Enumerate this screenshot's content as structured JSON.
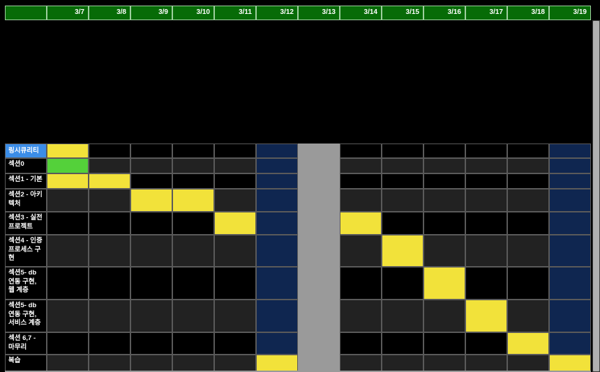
{
  "header": {
    "dates": [
      "3/7",
      "3/8",
      "3/9",
      "3/10",
      "3/11",
      "3/12",
      "3/13",
      "3/14",
      "3/15",
      "3/16",
      "3/17",
      "3/18",
      "3/19"
    ]
  },
  "rows": [
    {
      "label": "링시큐리티",
      "cells": [
        "yellow",
        "black",
        "black",
        "black",
        "black",
        "navy",
        "gray",
        "black",
        "black",
        "black",
        "black",
        "black",
        "navy"
      ]
    },
    {
      "label": "섹션0",
      "cells": [
        "green",
        "dark",
        "dark",
        "dark",
        "dark",
        "navy",
        "gray",
        "dark",
        "dark",
        "dark",
        "dark",
        "dark",
        "navy"
      ]
    },
    {
      "label": "섹션1 - 기본",
      "cells": [
        "yellow",
        "yellow",
        "black",
        "black",
        "black",
        "navy",
        "gray",
        "black",
        "black",
        "black",
        "black",
        "black",
        "navy"
      ]
    },
    {
      "label": "섹션2 - 아키텍처",
      "cells": [
        "dark",
        "dark",
        "yellow",
        "yellow",
        "dark",
        "navy",
        "gray",
        "dark",
        "dark",
        "dark",
        "dark",
        "dark",
        "navy"
      ]
    },
    {
      "label": "섹션3 - 실전 프로젝트",
      "cells": [
        "black",
        "black",
        "black",
        "black",
        "yellow",
        "navy",
        "gray",
        "yellow",
        "black",
        "black",
        "black",
        "black",
        "navy"
      ]
    },
    {
      "label": "섹션4 - 인증 프로세스 구현",
      "cells": [
        "dark",
        "dark",
        "dark",
        "dark",
        "dark",
        "navy",
        "gray",
        "dark",
        "yellow",
        "dark",
        "dark",
        "dark",
        "navy"
      ]
    },
    {
      "label": "섹션5- db 연동 구현, 웹 계층",
      "cells": [
        "black",
        "black",
        "black",
        "black",
        "black",
        "navy",
        "gray",
        "black",
        "black",
        "yellow",
        "black",
        "black",
        "navy"
      ]
    },
    {
      "label": "섹션5- db 연동 구현, 서비스 계층",
      "cells": [
        "dark",
        "dark",
        "dark",
        "dark",
        "dark",
        "navy",
        "gray",
        "dark",
        "dark",
        "dark",
        "yellow",
        "dark",
        "navy"
      ]
    },
    {
      "label": "섹션 6,7 - 마무리",
      "cells": [
        "black",
        "black",
        "black",
        "black",
        "black",
        "navy",
        "gray",
        "black",
        "black",
        "black",
        "black",
        "yellow",
        "navy"
      ]
    },
    {
      "label": "복습",
      "cells": [
        "dark",
        "dark",
        "dark",
        "dark",
        "dark",
        "yellow",
        "gray",
        "dark",
        "dark",
        "dark",
        "dark",
        "dark",
        "yellow"
      ]
    }
  ],
  "first_row_label_color": "#3b8de8",
  "colors": {
    "header_green": "#076b07",
    "highlight_yellow": "#f2e23a",
    "highlight_green": "#54d13a",
    "weekend_navy": "#0f2650",
    "weekend_gray": "#9a9a9a"
  }
}
